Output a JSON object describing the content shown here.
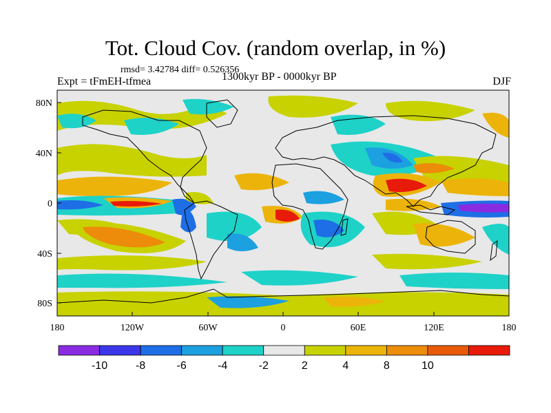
{
  "title": "Tot. Cloud Cov. (random overlap, in %)",
  "stats": "rmsd= 3.42784 diff= 0.526356",
  "experiment": "Expt = tFmEH-tfmea",
  "period": "1300kyr BP - 0000kyr BP",
  "season": "DJF",
  "axes": {
    "x_ticks": [
      "180",
      "120W",
      "60W",
      "0",
      "60E",
      "120E",
      "180"
    ],
    "y_ticks": [
      "80N",
      "40N",
      "0",
      "40S",
      "80S"
    ]
  },
  "colorbar": {
    "labels": [
      "-10",
      "-8",
      "-6",
      "-4",
      "-2",
      "2",
      "4",
      "8",
      "10"
    ],
    "colors": [
      "#8a2be2",
      "#3b37e8",
      "#1e6ee6",
      "#1ca0e0",
      "#1ed2c8",
      "#e8e8e8",
      "#c8d200",
      "#ecb40a",
      "#ec8c0a",
      "#e85a0a",
      "#e81a0a"
    ]
  },
  "icons": {
    "map": "world-coastline-map"
  }
}
